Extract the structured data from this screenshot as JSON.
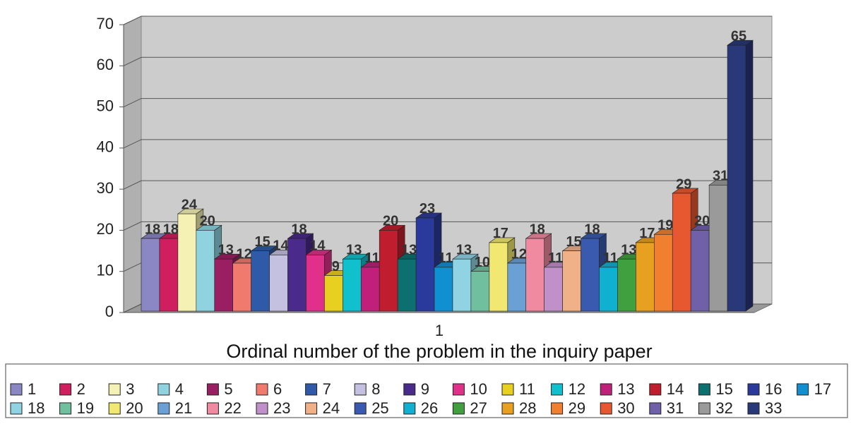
{
  "chart_data": {
    "type": "bar3d",
    "xlabel": "Ordinal number of the problem in the inquiry paper",
    "categories": [
      "1"
    ],
    "ylim": [
      0,
      70
    ],
    "yticks": [
      0,
      10,
      20,
      30,
      40,
      50,
      60,
      70
    ],
    "grid": true,
    "series": [
      {
        "name": "1",
        "color": "#8b86c4",
        "values": [
          18
        ]
      },
      {
        "name": "2",
        "color": "#d01f5e",
        "values": [
          18
        ]
      },
      {
        "name": "3",
        "color": "#f5f1b5",
        "values": [
          24
        ]
      },
      {
        "name": "4",
        "color": "#8fd3e0",
        "values": [
          20
        ]
      },
      {
        "name": "5",
        "color": "#9a1f62",
        "values": [
          13
        ]
      },
      {
        "name": "6",
        "color": "#f07a6e",
        "values": [
          12
        ]
      },
      {
        "name": "7",
        "color": "#2e5aa8",
        "values": [
          15
        ]
      },
      {
        "name": "8",
        "color": "#c4c0e0",
        "values": [
          14
        ]
      },
      {
        "name": "9",
        "color": "#4a2a8a",
        "values": [
          18
        ]
      },
      {
        "name": "10",
        "color": "#e0308a",
        "values": [
          14
        ]
      },
      {
        "name": "11",
        "color": "#e8d020",
        "values": [
          9
        ]
      },
      {
        "name": "12",
        "color": "#10c0cc",
        "values": [
          13
        ]
      },
      {
        "name": "13",
        "color": "#c0207a",
        "values": [
          11
        ]
      },
      {
        "name": "14",
        "color": "#c01e2e",
        "values": [
          20
        ]
      },
      {
        "name": "15",
        "color": "#0c7070",
        "values": [
          13
        ]
      },
      {
        "name": "16",
        "color": "#2a3a9c",
        "values": [
          23
        ]
      },
      {
        "name": "17",
        "color": "#1090d0",
        "values": [
          11
        ]
      },
      {
        "name": "18",
        "color": "#90d4e4",
        "values": [
          13
        ]
      },
      {
        "name": "19",
        "color": "#70c0a0",
        "values": [
          10
        ]
      },
      {
        "name": "20",
        "color": "#f0e870",
        "values": [
          17
        ]
      },
      {
        "name": "21",
        "color": "#6aa0d4",
        "values": [
          12
        ]
      },
      {
        "name": "22",
        "color": "#f08aa0",
        "values": [
          18
        ]
      },
      {
        "name": "23",
        "color": "#c090c8",
        "values": [
          11
        ]
      },
      {
        "name": "24",
        "color": "#f0b088",
        "values": [
          15
        ]
      },
      {
        "name": "25",
        "color": "#3a5ab0",
        "values": [
          18
        ]
      },
      {
        "name": "26",
        "color": "#10b0d0",
        "values": [
          11
        ]
      },
      {
        "name": "27",
        "color": "#40a040",
        "values": [
          13
        ]
      },
      {
        "name": "28",
        "color": "#e8a020",
        "values": [
          17
        ]
      },
      {
        "name": "29",
        "color": "#f08030",
        "values": [
          19
        ]
      },
      {
        "name": "30",
        "color": "#e85830",
        "values": [
          29
        ]
      },
      {
        "name": "31",
        "color": "#7060a8",
        "values": [
          20
        ]
      },
      {
        "name": "32",
        "color": "#9a9a9a",
        "values": [
          31
        ]
      },
      {
        "name": "33",
        "color": "#283878",
        "values": [
          65
        ]
      }
    ]
  }
}
